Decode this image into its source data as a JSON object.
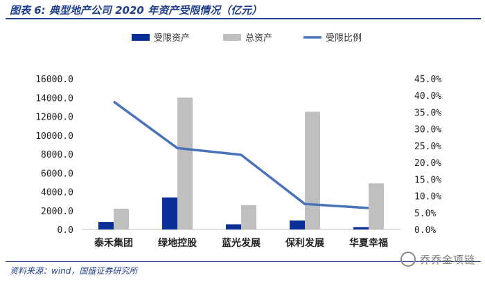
{
  "header": {
    "title": "图表 6:  典型地产公司 2020 年资产受限情况（亿元）"
  },
  "footer": {
    "source": "资料来源：wind，国盛证券研究所",
    "watermark": "乔乔金项链"
  },
  "chart_data": {
    "type": "bar",
    "categories": [
      "泰禾集团",
      "绿地控股",
      "蓝光发展",
      "保利发展",
      "华夏幸福"
    ],
    "series": [
      {
        "name": "受限资产",
        "type": "bar",
        "axis": "left",
        "color": "#0b2f96",
        "values": [
          800,
          3400,
          550,
          950,
          250
        ]
      },
      {
        "name": "总资产",
        "type": "bar",
        "axis": "left",
        "color": "#bfbfbf",
        "values": [
          2200,
          14000,
          2600,
          12500,
          4900
        ]
      },
      {
        "name": "受限比例",
        "type": "line",
        "axis": "right",
        "color": "#4a72b8",
        "values": [
          38.2,
          24.3,
          22.3,
          7.6,
          6.4
        ]
      }
    ],
    "y_left": {
      "min": 0,
      "max": 16000,
      "step": 2000,
      "tick_labels": [
        "0.0",
        "2000.0",
        "4000.0",
        "6000.0",
        "8000.0",
        "10000.0",
        "12000.0",
        "14000.0",
        "16000.0"
      ]
    },
    "y_right": {
      "min": 0,
      "max": 45,
      "step": 5,
      "tick_labels": [
        "0.0%",
        "5.0%",
        "10.0%",
        "15.0%",
        "20.0%",
        "25.0%",
        "30.0%",
        "35.0%",
        "40.0%",
        "45.0%"
      ]
    },
    "legend_position": "top",
    "grid": false
  }
}
